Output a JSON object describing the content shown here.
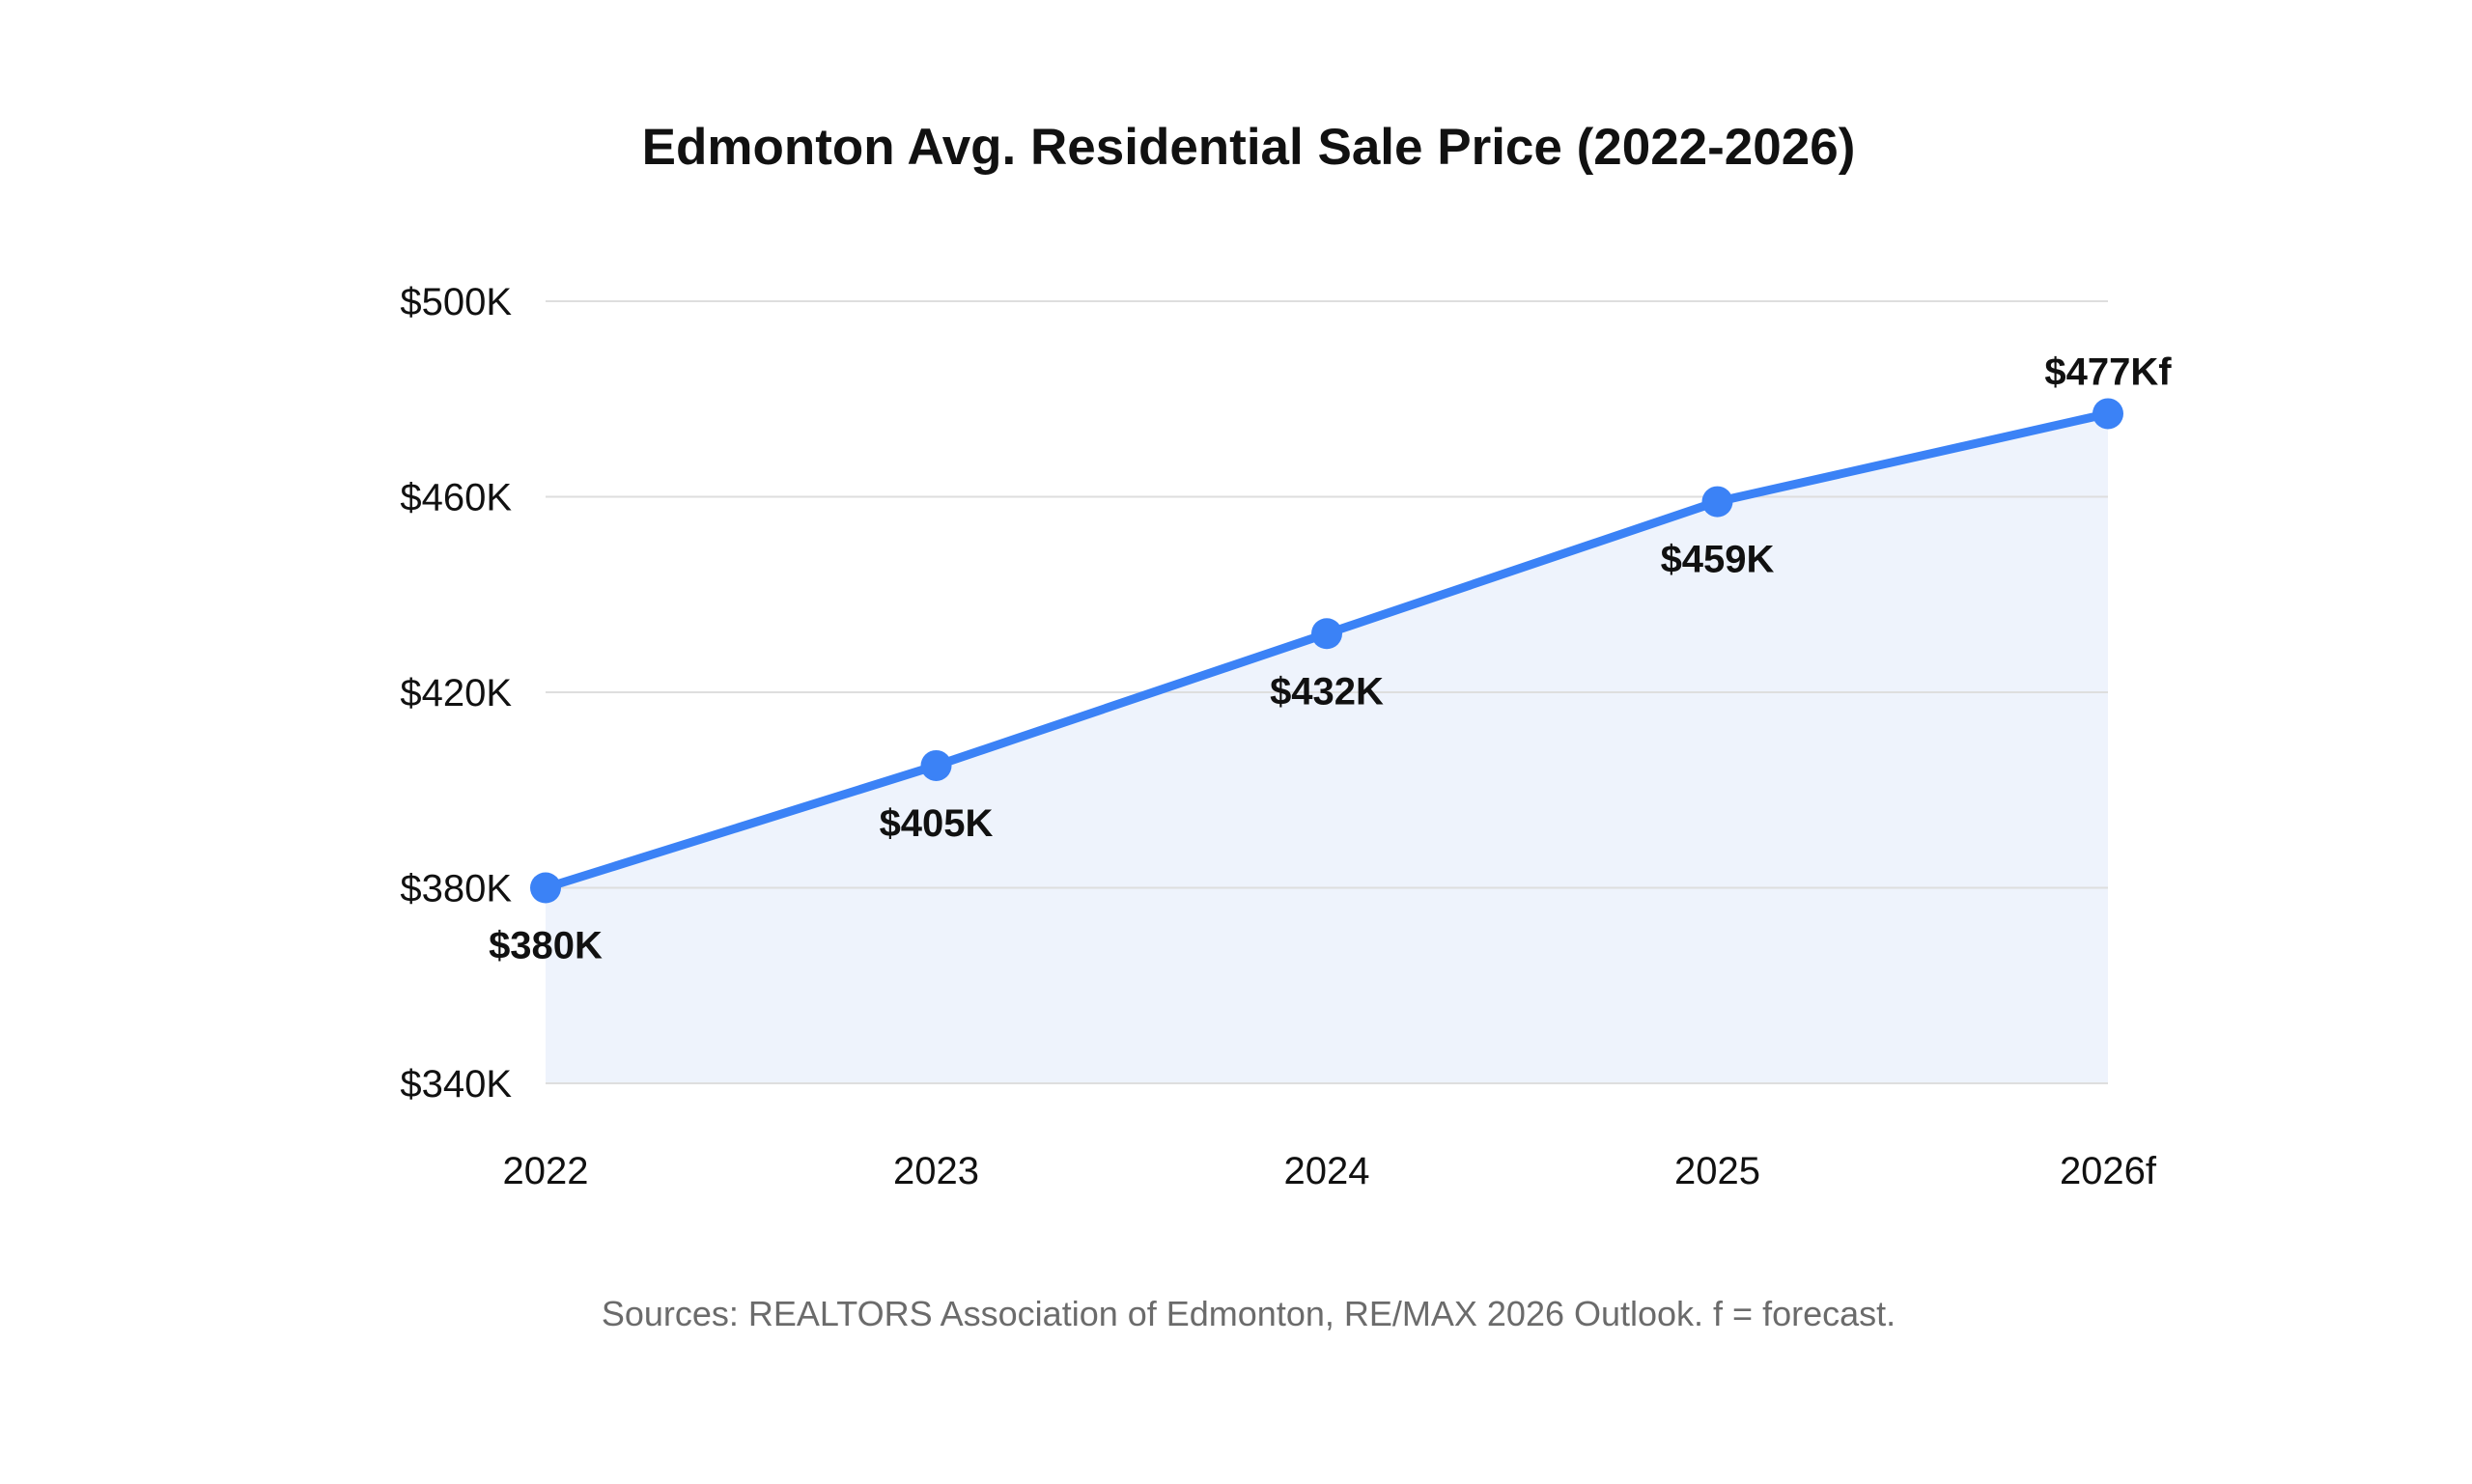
{
  "chart_data": {
    "type": "line",
    "title": "Edmonton Avg. Residential Sale Price (2022-2026)",
    "categories": [
      "2022",
      "2023",
      "2024",
      "2025",
      "2026f"
    ],
    "series": [
      {
        "values": [
          380,
          405,
          432,
          459,
          477
        ],
        "data_labels": [
          "$380K",
          "$405K",
          "$432K",
          "$459K",
          "$477Kf"
        ],
        "color": "#3b82f6"
      }
    ],
    "ylim": [
      340,
      500
    ],
    "yticks": [
      340,
      380,
      420,
      460,
      500
    ],
    "ytick_labels": [
      "$340K",
      "$380K",
      "$420K",
      "$460K",
      "$500K"
    ],
    "grid": true,
    "area_fill": true,
    "area_color": "#eef3fc",
    "xlabel": "",
    "ylabel": ""
  },
  "footer": {
    "source": "Sources: REALTORS Association of Edmonton, RE/MAX 2026 Outlook. f = forecast."
  }
}
